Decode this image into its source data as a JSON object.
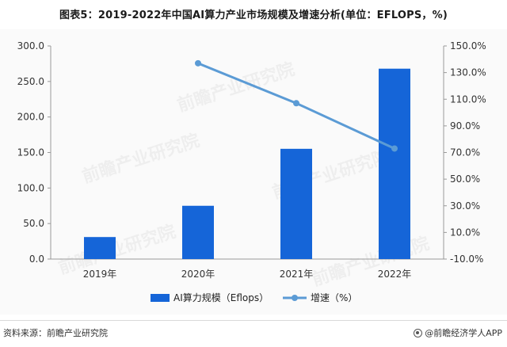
{
  "title": "图表5：2019-2022年中国AI算力产业市场规模及增速分析(单位：EFLOPS，%)",
  "source": "资料来源：前瞻产业研究院",
  "brand": "@前瞻经济学人APP",
  "watermark": "前瞻产业研究院",
  "colors": {
    "bar": "#1565d8",
    "line": "#5b9bd5"
  },
  "chart_data": {
    "type": "bar",
    "categories": [
      "2019年",
      "2020年",
      "2021年",
      "2022年"
    ],
    "series": [
      {
        "name": "AI算力规模（Eflops）",
        "type": "bar",
        "axis": "left",
        "values": [
          31.0,
          75.0,
          155.2,
          268.0
        ]
      },
      {
        "name": "增速（%）",
        "type": "line",
        "axis": "right",
        "values": [
          null,
          137.0,
          107.0,
          73.0
        ]
      }
    ],
    "yleft_ticks": [
      "300.0",
      "250.0",
      "200.0",
      "150.0",
      "100.0",
      "50.0",
      "0.0"
    ],
    "yleft_lim": [
      0,
      300
    ],
    "yright_ticks": [
      "150.0%",
      "130.0%",
      "110.0%",
      "90.0%",
      "70.0%",
      "50.0%",
      "30.0%",
      "10.0%",
      "-10.0%"
    ],
    "yright_lim": [
      -10,
      150
    ],
    "grid": false,
    "legend_position": "bottom"
  }
}
